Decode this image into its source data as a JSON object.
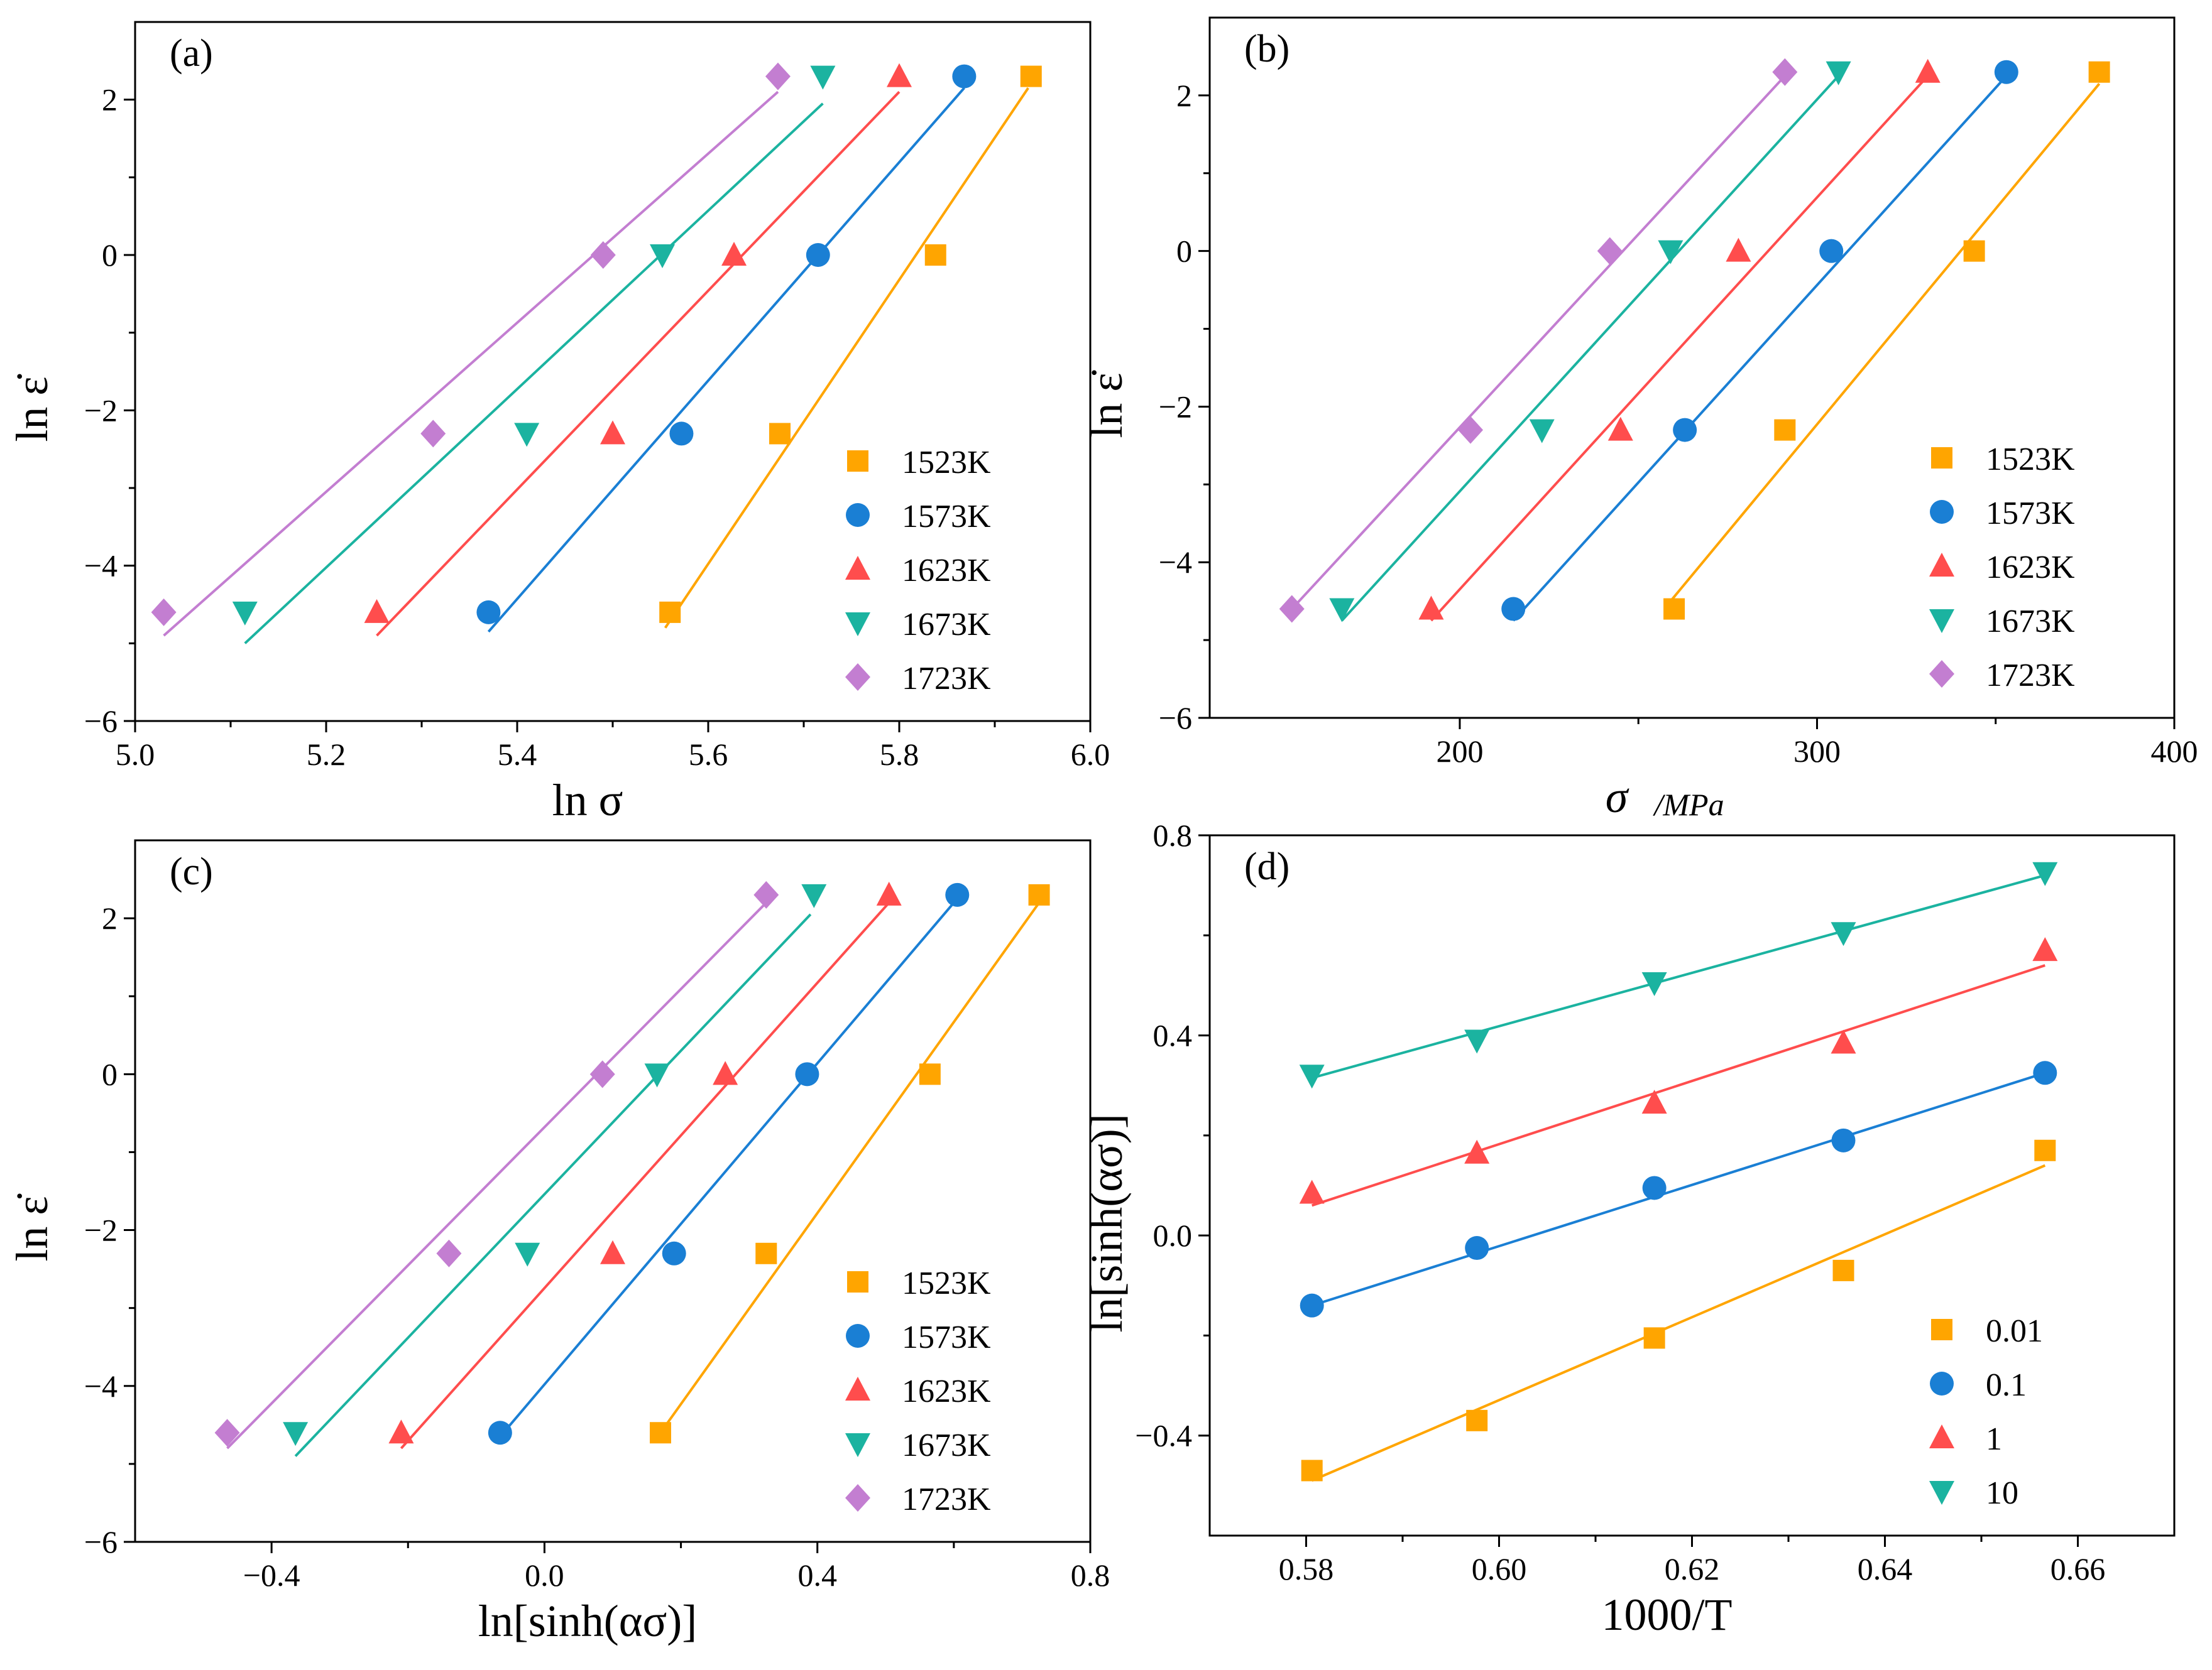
{
  "chart_data": [
    {
      "id": "a",
      "type": "scatter",
      "panel_label": "(a)",
      "xlabel": "ln σ",
      "ylabel": "ln ε̇",
      "xlim": [
        5.0,
        6.0
      ],
      "ylim": [
        -6,
        3
      ],
      "xticks": [
        5.0,
        5.2,
        5.4,
        5.6,
        5.8,
        6.0
      ],
      "xtick_labels": [
        "5.0",
        "5.2",
        "5.4",
        "5.6",
        "5.8",
        "6.0"
      ],
      "yticks": [
        -6,
        -4,
        -2,
        0,
        2
      ],
      "ytick_labels": [
        "−6",
        "−4",
        "−2",
        "0",
        "2"
      ],
      "legend_position": "bottom-right",
      "series": [
        {
          "name": "1523K",
          "color": "#ffa500",
          "marker": "square",
          "x": [
            5.56,
            5.675,
            5.838,
            5.938
          ],
          "y": [
            -4.6,
            -2.3,
            0,
            2.3
          ],
          "fit": {
            "x": [
              5.555,
              5.935
            ],
            "y": [
              -4.8,
              2.15
            ]
          }
        },
        {
          "name": "1573K",
          "color": "#1a7fd4",
          "marker": "circle",
          "x": [
            5.37,
            5.572,
            5.715,
            5.868
          ],
          "y": [
            -4.6,
            -2.3,
            0,
            2.3
          ],
          "fit": {
            "x": [
              5.37,
              5.868
            ],
            "y": [
              -4.85,
              2.15
            ]
          }
        },
        {
          "name": "1623K",
          "color": "#ff4d4d",
          "marker": "triangle-up",
          "x": [
            5.253,
            5.5,
            5.627,
            5.8
          ],
          "y": [
            -4.6,
            -2.3,
            0,
            2.3
          ],
          "fit": {
            "x": [
              5.253,
              5.8
            ],
            "y": [
              -4.9,
              2.1
            ]
          }
        },
        {
          "name": "1673K",
          "color": "#1bb3a0",
          "marker": "triangle-down",
          "x": [
            5.115,
            5.41,
            5.552,
            5.72
          ],
          "y": [
            -4.6,
            -2.3,
            0,
            2.3
          ],
          "fit": {
            "x": [
              5.115,
              5.72
            ],
            "y": [
              -5.0,
              1.95
            ]
          }
        },
        {
          "name": "1723K",
          "color": "#c37ed1",
          "marker": "diamond",
          "x": [
            5.03,
            5.312,
            5.49,
            5.673
          ],
          "y": [
            -4.6,
            -2.3,
            0,
            2.3
          ],
          "fit": {
            "x": [
              5.03,
              5.673
            ],
            "y": [
              -4.9,
              2.1
            ]
          }
        }
      ]
    },
    {
      "id": "b",
      "type": "scatter",
      "panel_label": "(b)",
      "xlabel": "σ",
      "xlabel_unit": "/MPa",
      "ylabel": "ln ε̇",
      "xlim": [
        130,
        400
      ],
      "ylim": [
        -6,
        3
      ],
      "xticks": [
        200,
        300,
        400
      ],
      "xtick_labels": [
        "200",
        "300",
        "400"
      ],
      "yticks": [
        -6,
        -4,
        -2,
        0,
        2
      ],
      "ytick_labels": [
        "−6",
        "−4",
        "−2",
        "0",
        "2"
      ],
      "legend_position": "bottom-right",
      "series": [
        {
          "name": "1523K",
          "color": "#ffa500",
          "marker": "square",
          "x": [
            260,
            291,
            344,
            379
          ],
          "y": [
            -4.6,
            -2.3,
            0,
            2.3
          ],
          "fit": {
            "x": [
              259,
              379
            ],
            "y": [
              -4.5,
              2.15
            ]
          }
        },
        {
          "name": "1573K",
          "color": "#1a7fd4",
          "marker": "circle",
          "x": [
            215,
            263,
            304,
            353
          ],
          "y": [
            -4.6,
            -2.3,
            0,
            2.3
          ],
          "fit": {
            "x": [
              215,
              353
            ],
            "y": [
              -4.75,
              2.25
            ]
          }
        },
        {
          "name": "1623K",
          "color": "#ff4d4d",
          "marker": "triangle-up",
          "x": [
            192,
            245,
            278,
            331
          ],
          "y": [
            -4.6,
            -2.3,
            0,
            2.3
          ],
          "fit": {
            "x": [
              192,
              331
            ],
            "y": [
              -4.75,
              2.25
            ]
          }
        },
        {
          "name": "1673K",
          "color": "#1bb3a0",
          "marker": "triangle-down",
          "x": [
            167,
            223,
            259,
            306
          ],
          "y": [
            -4.6,
            -2.3,
            0,
            2.3
          ],
          "fit": {
            "x": [
              167,
              306
            ],
            "y": [
              -4.75,
              2.25
            ]
          }
        },
        {
          "name": "1723K",
          "color": "#c37ed1",
          "marker": "diamond",
          "x": [
            153,
            203,
            242,
            291
          ],
          "y": [
            -4.6,
            -2.3,
            0,
            2.3
          ],
          "fit": {
            "x": [
              153,
              291
            ],
            "y": [
              -4.6,
              2.25
            ]
          }
        }
      ]
    },
    {
      "id": "c",
      "type": "scatter",
      "panel_label": "(c)",
      "xlabel": "ln[sinh(ασ)]",
      "ylabel": "ln ε̇",
      "xlim": [
        -0.6,
        0.8
      ],
      "ylim": [
        -6,
        3
      ],
      "xticks": [
        -0.4,
        0.0,
        0.4,
        0.8
      ],
      "xtick_labels": [
        "−0.4",
        "0.0",
        "0.4",
        "0.8"
      ],
      "yticks": [
        -6,
        -4,
        -2,
        0,
        2
      ],
      "ytick_labels": [
        "−6",
        "−4",
        "−2",
        "0",
        "2"
      ],
      "legend_position": "bottom-right",
      "series": [
        {
          "name": "1523K",
          "color": "#ffa500",
          "marker": "square",
          "x": [
            0.17,
            0.325,
            0.565,
            0.725
          ],
          "y": [
            -4.6,
            -2.3,
            0,
            2.3
          ],
          "fit": {
            "x": [
              0.17,
              0.725
            ],
            "y": [
              -4.6,
              2.2
            ]
          }
        },
        {
          "name": "1573K",
          "color": "#1a7fd4",
          "marker": "circle",
          "x": [
            -0.065,
            0.19,
            0.385,
            0.605
          ],
          "y": [
            -4.6,
            -2.3,
            0,
            2.3
          ],
          "fit": {
            "x": [
              -0.065,
              0.6
            ],
            "y": [
              -4.65,
              2.2
            ]
          }
        },
        {
          "name": "1623K",
          "color": "#ff4d4d",
          "marker": "triangle-up",
          "x": [
            -0.21,
            0.1,
            0.265,
            0.505
          ],
          "y": [
            -4.6,
            -2.3,
            0,
            2.3
          ],
          "fit": {
            "x": [
              -0.21,
              0.505
            ],
            "y": [
              -4.8,
              2.2
            ]
          }
        },
        {
          "name": "1673K",
          "color": "#1bb3a0",
          "marker": "triangle-down",
          "x": [
            -0.365,
            -0.025,
            0.165,
            0.395
          ],
          "y": [
            -4.6,
            -2.3,
            0,
            2.3
          ],
          "fit": {
            "x": [
              -0.365,
              0.39
            ],
            "y": [
              -4.9,
              2.05
            ]
          }
        },
        {
          "name": "1723K",
          "color": "#c37ed1",
          "marker": "diamond",
          "x": [
            -0.465,
            -0.14,
            0.085,
            0.325
          ],
          "y": [
            -4.6,
            -2.3,
            0,
            2.3
          ],
          "fit": {
            "x": [
              -0.465,
              0.325
            ],
            "y": [
              -4.8,
              2.2
            ]
          }
        }
      ]
    },
    {
      "id": "d",
      "type": "scatter",
      "panel_label": "(d)",
      "xlabel": "1000/T",
      "ylabel": "ln[sinh(ασ)]",
      "xlim": [
        0.57,
        0.67
      ],
      "ylim": [
        -0.6,
        0.8
      ],
      "xticks": [
        0.58,
        0.6,
        0.62,
        0.64,
        0.66
      ],
      "xtick_labels": [
        "0.58",
        "0.60",
        "0.62",
        "0.64",
        "0.66"
      ],
      "yticks": [
        -0.4,
        0.0,
        0.4,
        0.8
      ],
      "ytick_labels": [
        "−0.4",
        "0.0",
        "0.4",
        "0.8"
      ],
      "legend_position": "bottom-right",
      "series": [
        {
          "name": "0.01",
          "color": "#ffa500",
          "marker": "square",
          "x": [
            0.5806,
            0.5977,
            0.6161,
            0.6357,
            0.6566
          ],
          "y": [
            -0.47,
            -0.37,
            -0.205,
            -0.07,
            0.17
          ],
          "fit": {
            "x": [
              0.5806,
              0.6566
            ],
            "y": [
              -0.49,
              0.14
            ]
          }
        },
        {
          "name": "0.1",
          "color": "#1a7fd4",
          "marker": "circle",
          "x": [
            0.5806,
            0.5977,
            0.6161,
            0.6357,
            0.6566
          ],
          "y": [
            -0.14,
            -0.025,
            0.095,
            0.19,
            0.325
          ],
          "fit": {
            "x": [
              0.5806,
              0.6566
            ],
            "y": [
              -0.14,
              0.325
            ]
          }
        },
        {
          "name": "1",
          "color": "#ff4d4d",
          "marker": "triangle-up",
          "x": [
            0.5806,
            0.5977,
            0.6161,
            0.6357,
            0.6566
          ],
          "y": [
            0.085,
            0.165,
            0.265,
            0.385,
            0.57
          ],
          "fit": {
            "x": [
              0.5806,
              0.6566
            ],
            "y": [
              0.06,
              0.54
            ]
          }
        },
        {
          "name": "10",
          "color": "#1bb3a0",
          "marker": "triangle-down",
          "x": [
            0.5806,
            0.5977,
            0.6161,
            0.6357,
            0.6566
          ],
          "y": [
            0.32,
            0.39,
            0.505,
            0.605,
            0.725
          ],
          "fit": {
            "x": [
              0.5806,
              0.6566
            ],
            "y": [
              0.315,
              0.72
            ]
          }
        }
      ]
    }
  ]
}
